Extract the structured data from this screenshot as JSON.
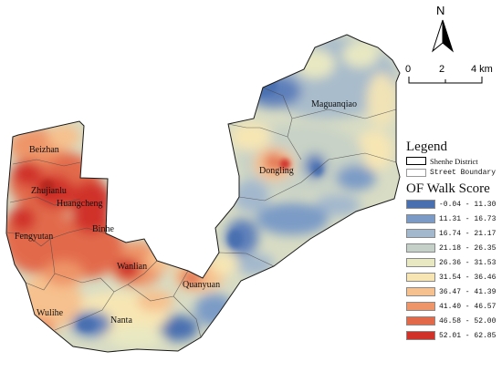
{
  "north_arrow": {
    "label": "N"
  },
  "scale_bar": {
    "ticks": [
      "0",
      "2",
      "4 km"
    ]
  },
  "streets": [
    "Maguanqiao",
    "Dongling",
    "Beizhan",
    "Zhujianlu",
    "Huangcheng",
    "Fengyutan",
    "Binhe",
    "Wanlian",
    "Quanyuan",
    "Wulihe",
    "Nanta"
  ],
  "legend": {
    "title": "Legend",
    "district_label": "Shenhe District",
    "street_boundary_label": "Street Boundary",
    "score_title": "OF Walk Score",
    "classes": [
      {
        "range": "-0.04 - 11.30",
        "color": "#4a6fb0"
      },
      {
        "range": "11.31 - 16.73",
        "color": "#7b9bc6"
      },
      {
        "range": "16.74 - 21.17",
        "color": "#a3b8cd"
      },
      {
        "range": "21.18 - 26.35",
        "color": "#c5d0c8"
      },
      {
        "range": "26.36 - 31.53",
        "color": "#e8e8c2"
      },
      {
        "range": "31.54 - 36.46",
        "color": "#f7e6b4"
      },
      {
        "range": "36.47 - 41.39",
        "color": "#f6c18e"
      },
      {
        "range": "41.40 - 46.57",
        "color": "#ee9569"
      },
      {
        "range": "46.58 - 52.00",
        "color": "#e26a4b"
      },
      {
        "range": "52.01 - 62.85",
        "color": "#d0322a"
      }
    ]
  }
}
